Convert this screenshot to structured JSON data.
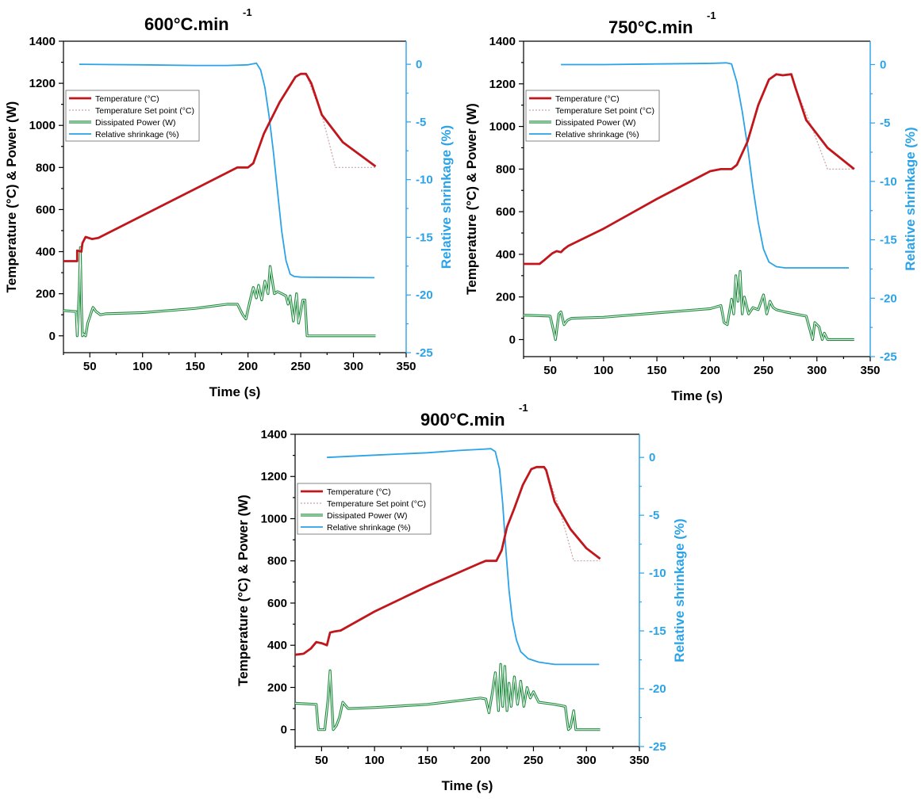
{
  "colors": {
    "temperature": "#c0161c",
    "setpoint": "#c9a3a3",
    "power_outer": "#1a8a3a",
    "shrinkage": "#2aa3e8",
    "axis_right": "#2aa3e8"
  },
  "chart_data": [
    {
      "type": "line",
      "title": "600°C.min",
      "title_sup": "-1",
      "xlabel": "Time (s)",
      "ylabel": "Temperature (°C) & Power (W)",
      "ylabel_right": "Relative shrinkage (%)",
      "xlim": [
        25,
        350
      ],
      "ylim": [
        -80,
        1400
      ],
      "ylim_right": [
        -25,
        2
      ],
      "xticks": [
        50,
        100,
        150,
        200,
        250,
        300,
        350
      ],
      "yticks": [
        0,
        200,
        400,
        600,
        800,
        1000,
        1200,
        1400
      ],
      "yticks_right": [
        0,
        -5,
        -10,
        -15,
        -20,
        -25
      ],
      "legend": [
        "Temperature (°C)",
        "Temperature Set point (°C)",
        "Dissipated Power (W)",
        "Relative shrinkage (%)"
      ],
      "legend_position": "upper-left",
      "series": [
        {
          "name": "Temperature (°C)",
          "axis": "left",
          "x": [
            25,
            38,
            38,
            42,
            43,
            46,
            52,
            58,
            190,
            195,
            200,
            205,
            215,
            230,
            245,
            250,
            255,
            260,
            270,
            290,
            321
          ],
          "y": [
            355,
            355,
            405,
            400,
            440,
            470,
            460,
            465,
            800,
            800,
            800,
            820,
            960,
            1110,
            1230,
            1245,
            1245,
            1200,
            1050,
            920,
            805
          ]
        },
        {
          "name": "Temperature Set point (°C)",
          "axis": "left",
          "x": [
            255,
            270,
            283,
            300,
            321
          ],
          "y": [
            1245,
            1050,
            800,
            800,
            800
          ]
        },
        {
          "name": "Dissipated Power (W)",
          "axis": "left",
          "x": [
            25,
            37,
            38,
            40,
            41,
            42,
            43,
            44,
            46,
            48,
            50,
            53,
            56,
            60,
            65,
            100,
            150,
            180,
            190,
            195,
            198,
            202,
            205,
            208,
            210,
            213,
            216,
            219,
            221,
            225,
            228,
            232,
            236,
            238,
            240,
            243,
            246,
            248,
            252,
            254,
            256,
            321
          ],
          "y": [
            120,
            115,
            0,
            220,
            420,
            150,
            0,
            10,
            0,
            60,
            90,
            135,
            115,
            100,
            105,
            110,
            130,
            150,
            150,
            100,
            80,
            170,
            230,
            180,
            240,
            170,
            260,
            200,
            330,
            200,
            210,
            200,
            190,
            150,
            190,
            70,
            200,
            60,
            170,
            170,
            0,
            0
          ]
        },
        {
          "name": "Relative shrinkage (%)",
          "axis": "right",
          "x": [
            40,
            100,
            150,
            180,
            200,
            208,
            212,
            216,
            220,
            224,
            228,
            232,
            236,
            240,
            244,
            250,
            320
          ],
          "y": [
            0,
            -0.05,
            -0.1,
            -0.1,
            -0.05,
            0.1,
            -0.5,
            -2,
            -4.5,
            -7.5,
            -11,
            -14.5,
            -17,
            -18.2,
            -18.4,
            -18.45,
            -18.5
          ]
        }
      ]
    },
    {
      "type": "line",
      "title": "750°C.min",
      "title_sup": "-1",
      "xlabel": "Time (s)",
      "ylabel": "Temperature (°C) & Power (W)",
      "ylabel_right": "Relative shrinkage (%)",
      "xlim": [
        25,
        350
      ],
      "ylim": [
        -80,
        1400
      ],
      "ylim_right": [
        -25,
        2
      ],
      "xticks": [
        50,
        100,
        150,
        200,
        250,
        300,
        350
      ],
      "yticks": [
        0,
        200,
        400,
        600,
        800,
        1000,
        1200,
        1400
      ],
      "yticks_right": [
        0,
        -5,
        -10,
        -15,
        -20,
        -25
      ],
      "legend": [
        "Temperature (°C)",
        "Temperature Set point (°C)",
        "Dissipated Power (W)",
        "Relative shrinkage (%)"
      ],
      "legend_position": "upper-left",
      "series": [
        {
          "name": "Temperature (°C)",
          "axis": "left",
          "x": [
            25,
            40,
            45,
            52,
            56,
            60,
            63,
            67,
            100,
            150,
            200,
            210,
            215,
            220,
            225,
            235,
            245,
            255,
            262,
            268,
            276,
            280,
            290,
            310,
            335
          ],
          "y": [
            355,
            355,
            375,
            405,
            415,
            410,
            425,
            440,
            520,
            660,
            790,
            800,
            800,
            800,
            820,
            930,
            1100,
            1220,
            1245,
            1240,
            1245,
            1180,
            1030,
            900,
            800
          ]
        },
        {
          "name": "Temperature Set point (°C)",
          "axis": "left",
          "x": [
            280,
            295,
            310,
            320,
            335
          ],
          "y": [
            1180,
            1000,
            800,
            800,
            800
          ]
        },
        {
          "name": "Dissipated Power (W)",
          "axis": "left",
          "x": [
            25,
            50,
            55,
            58,
            60,
            63,
            66,
            70,
            100,
            150,
            200,
            210,
            213,
            216,
            220,
            222,
            224,
            226,
            228,
            230,
            232,
            236,
            240,
            245,
            250,
            253,
            256,
            259,
            262,
            270,
            290,
            296,
            298,
            302,
            305,
            307,
            310,
            335
          ],
          "y": [
            115,
            110,
            0,
            120,
            130,
            70,
            90,
            100,
            105,
            125,
            145,
            160,
            80,
            70,
            190,
            120,
            300,
            180,
            320,
            120,
            200,
            120,
            150,
            140,
            210,
            120,
            180,
            150,
            140,
            130,
            110,
            0,
            80,
            60,
            0,
            30,
            0,
            0
          ]
        },
        {
          "name": "Relative shrinkage (%)",
          "axis": "right",
          "x": [
            60,
            100,
            150,
            200,
            215,
            220,
            225,
            230,
            235,
            240,
            245,
            250,
            255,
            262,
            270,
            330
          ],
          "y": [
            0,
            0,
            0.05,
            0.1,
            0.15,
            0.05,
            -1.5,
            -4,
            -7,
            -10.5,
            -13.5,
            -15.8,
            -16.9,
            -17.3,
            -17.4,
            -17.4
          ]
        }
      ]
    },
    {
      "type": "line",
      "title": "900°C.min",
      "title_sup": "-1",
      "xlabel": "Time (s)",
      "ylabel": "Temperature (°C) & Power (W)",
      "ylabel_right": "Relative shrinkage (%)",
      "xlim": [
        25,
        350
      ],
      "ylim": [
        -80,
        1400
      ],
      "ylim_right": [
        -25,
        2
      ],
      "xticks": [
        50,
        100,
        150,
        200,
        250,
        300,
        350
      ],
      "yticks": [
        0,
        200,
        400,
        600,
        800,
        1000,
        1200,
        1400
      ],
      "yticks_right": [
        0,
        -5,
        -10,
        -15,
        -20,
        -25
      ],
      "legend": [
        "Temperature (°C)",
        "Temperature Set point (°C)",
        "Dissipated Power (W)",
        "Relative shrinkage (%)"
      ],
      "legend_position": "upper-left",
      "series": [
        {
          "name": "Temperature (°C)",
          "axis": "left",
          "x": [
            25,
            33,
            40,
            45,
            50,
            55,
            58,
            62,
            68,
            100,
            150,
            200,
            205,
            210,
            215,
            220,
            225,
            232,
            240,
            248,
            253,
            260,
            262,
            270,
            285,
            300,
            313
          ],
          "y": [
            355,
            360,
            385,
            415,
            410,
            400,
            460,
            465,
            470,
            560,
            680,
            790,
            800,
            800,
            800,
            850,
            960,
            1050,
            1160,
            1235,
            1245,
            1245,
            1230,
            1080,
            950,
            860,
            810
          ]
        },
        {
          "name": "Temperature Set point (°C)",
          "axis": "left",
          "x": [
            262,
            275,
            288,
            300,
            313
          ],
          "y": [
            1230,
            1040,
            800,
            800,
            800
          ]
        },
        {
          "name": "Dissipated Power (W)",
          "axis": "left",
          "x": [
            25,
            45,
            47,
            53,
            56,
            58,
            61,
            64,
            67,
            70,
            75,
            100,
            150,
            200,
            205,
            208,
            211,
            214,
            217,
            219,
            221,
            223,
            225,
            227,
            229,
            232,
            235,
            238,
            241,
            244,
            247,
            250,
            255,
            270,
            280,
            283,
            285,
            288,
            290,
            313
          ],
          "y": [
            125,
            120,
            0,
            0,
            140,
            280,
            0,
            20,
            60,
            130,
            100,
            105,
            120,
            150,
            145,
            80,
            170,
            270,
            90,
            310,
            110,
            300,
            90,
            220,
            110,
            250,
            120,
            230,
            110,
            200,
            150,
            180,
            130,
            120,
            110,
            0,
            10,
            90,
            0,
            0
          ]
        },
        {
          "name": "Relative shrinkage (%)",
          "axis": "right",
          "x": [
            55,
            100,
            150,
            180,
            200,
            210,
            214,
            218,
            221,
            224,
            227,
            230,
            234,
            238,
            245,
            255,
            270,
            312
          ],
          "y": [
            0,
            0.2,
            0.4,
            0.6,
            0.7,
            0.75,
            0.5,
            -1,
            -4,
            -8,
            -11.5,
            -14,
            -15.8,
            -16.8,
            -17.4,
            -17.7,
            -17.9,
            -17.9
          ]
        }
      ]
    }
  ]
}
